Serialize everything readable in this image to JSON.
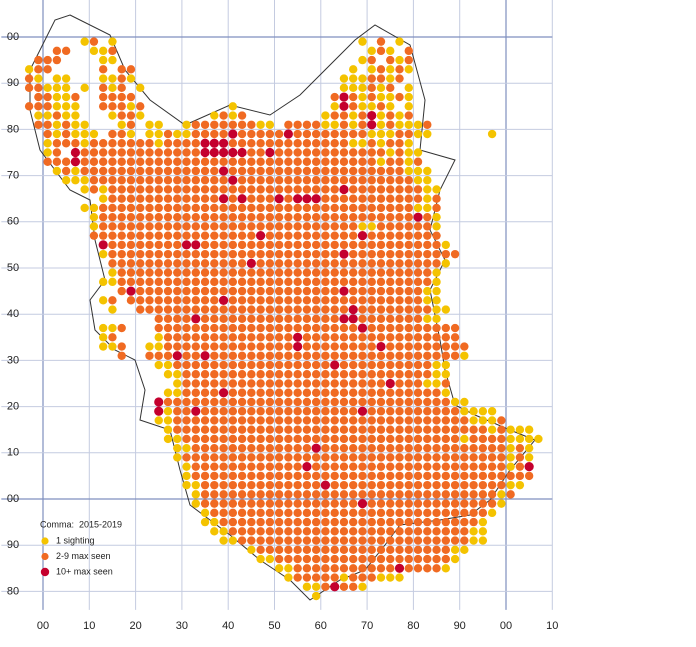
{
  "map_data": {
    "legend": {
      "title": "Comma:  2015-2019",
      "items": [
        {
          "code": "a",
          "label": "1 sighting",
          "color": "#f4c300"
        },
        {
          "code": "b",
          "label": "2-9 max seen",
          "color": "#f06a22"
        },
        {
          "code": "c",
          "label": "10+ max seen",
          "color": "#c4002e"
        }
      ]
    },
    "xlim": [
      -9,
      110
    ],
    "ylim": [
      -24,
      108
    ],
    "xticks": [
      {
        "value": 0,
        "label": "00"
      },
      10,
      20,
      30,
      40,
      50,
      60,
      70,
      80,
      90,
      {
        "value": 100,
        "label": "00"
      },
      {
        "value": 110,
        "label": "10"
      }
    ],
    "yticks": [
      {
        "value": 100,
        "label": "00"
      },
      90,
      80,
      70,
      60,
      50,
      40,
      30,
      20,
      10,
      {
        "value": 0,
        "label": "00"
      },
      {
        "value": -10,
        "label": "90"
      },
      {
        "value": -20,
        "label": "80"
      }
    ],
    "rows": [
      "......ab.a..........................a.b.a",
      "...bb..aab...........................aba.b",
      ".bbb....aa..........................ab.bab",
      "abb.....b.bb.......................a.ababa",
      "ba.aa...aaba......................aaabbab.",
      "bbaaa.a.bab.a.....................aaabab.a",
      ".bbaab..bbbb.....................bcbabaaba",
      "bbbaaa..bbbab.........a..........acbaaba.a",
      ".aabaa...abba.......abab........abbabcabab",
      ".bbabaa...ab.aa..abbbbbbbaa.bbbbaababcabaaab",
      "..babaaa.bba.aabaabbbbcbbbbbcbbbbbbbbaaabbaa......a",
      "..abbbabbbbbbbabbbbcccbbbbbbbbbbbbbaababba",
      "..ab.cbbbbbbbbbbbbbcccccbbcbbbbbbbbbbbbabaa",
      "..bbbcbbbbbbbbbbbbbbbbbbbbbbbbbbbbbbbbabbab",
      "...ababbbbbbbbbbbbbbbcbbbbbbbbbbbbbbbbbbbaaa",
      "....aaabbbbbbbbbbbbbbbcbbbbbbbbbbbbbbbbbbbaa",
      "......ababbbbbbbbbbbbbbbbbbbbbbbbbcbbbbbbbbaa",
      "........abbbbbbbbbbbbcbcbbbcbcccbbbbbbbbbbbab",
      "......aabbbbbbbbbbbbbbbbbbbbbbbbbbbbbbbbbbaab",
      ".......abbbbbbbbbbbbbbbbbbbbbbbbbbbbbbbbbbcba",
      ".......abbbbbbbbbbbbbbbbbbbbbbbbbbbbaabbbbbba",
      ".......bbbbbbbbbbbbbbbbbbcbbbbbbbbbbcbbbbbbbb",
      "........cbbbbbbbbccbbbbbbbbbbbbbbbbbbbbbbbbbba",
      "........abbbbbbbbbbbbbbbbbbbbbbbbbcbbbbbbbbbbbb",
      ".........bbbbbbbbbbbbbbbcbbbbbbbbbbbbbbbbbbbba",
      ".........abbbbbbbbbbbbbbbbbbbbbbbbbbbbbbbbbba",
      "........aabbbbbbbbbbbbbbbbbbbbbbbbbbbbbbbbbba",
      "..........bcbbbbbbbbbbbbbbbbbbbbbbcbbbbbbbbaa",
      "........ab.bbbbbbbbbbcbbbbbbbbbbbbbbbbbbbbbaa",
      ".........a..bbbbbbbbbbbbbbbbbbbbbbbcbbbbbbbbaa",
      "..............bbbbcbbbbbbbbbbbbbbbccbbbbbbbaa",
      "........aab...bbbbbbbbbbbbbbbbbbbbbbcbbbbbbbbbb",
      "........ab....abbbbbbbbbbbbbbcbbbbbbbbbbbbbbbbb",
      "........aab..aabbbbbbbbbbbbbbcbbbbbbbbcbbbbbbbbb",
      "..........b..bbbcbbcbbbbbbbbbbbbbbbbbbbbbbbbbbba",
      "..............aabbbbbbbbbbbbbbbbbcbbbbbbbbbbaa",
      "...............aabbbbbbbbbbbbbbbbbbbbbbbbbbbaa",
      "................abbbbbbbbbbbbbbbbbbbbbbcbbbaab",
      "...............aabbbbcbbbbbbbbbbbbbbbbbbbbbbba",
      "..............cbbbbbbbbbbbbbbbbbbbbbbbbbbbbbbbaa",
      "..............cabbcbbbbbbbbbbbbbbbbbcbbbbbbbbbbaaaa",
      "..............aabbbbbbbbbbbbbbbbbbbbbbbbbbbbbbbbaaab",
      "...............abbbbbbbbbbbbbbbbbbbbbbbbbbbbbbbbbbabaaa",
      "...............aabbbbbbbbbbbbbbbbbbbbbbbbbbbbbbabbbbaaaa",
      "................aabbbbbbbbbbbbbcbbbbbbbbbbbbbbbbbbbbaba",
      "................abbbbbbbbbbbbbbbbbbbbbbbbbbbbbbbbbbbaba",
      ".................abbbbbbbbbbbbcbbbbbbbbbbbbbbbbbbbbbabc",
      ".................abbbbbbbbbbbbbbbbbbbbbbbbbbbbbbbbbbbbb",
      ".................aabbbbbbbbbbbbbcbbbbbbbbbbbbbbbbbbbaa",
      "..................abbbbbbbbbbbbbbbbbbbbbbbbbbbbbbbbab",
      "..................abbbbbbbbbbbbbbbbbcbbbbbbbbbbbbbba",
      "...................abbbbbbbbbbbbbbbbbbbbbbbbbbbbbba",
      "...................aabbbbbbbbbbbbbbbbbbbbbbbbbbbba",
      "....................aabbbbbbbbbbbbbbbbbbbbbbbbbbaa",
      ".....................aabbbbbbbbbbbbbbbbbbbbbbbbbaa",
      "........................abbbbbbbbbbbbbbbbbbbbbaa",
      ".........................aabbbbbbbbbbbbbbbbbbba",
      "...........................aabbbbbbbbbbbcbbbba",
      "............................abbbbbabbbaaa",
      "..............................aabcbba",
      "...............................a"
    ]
  }
}
